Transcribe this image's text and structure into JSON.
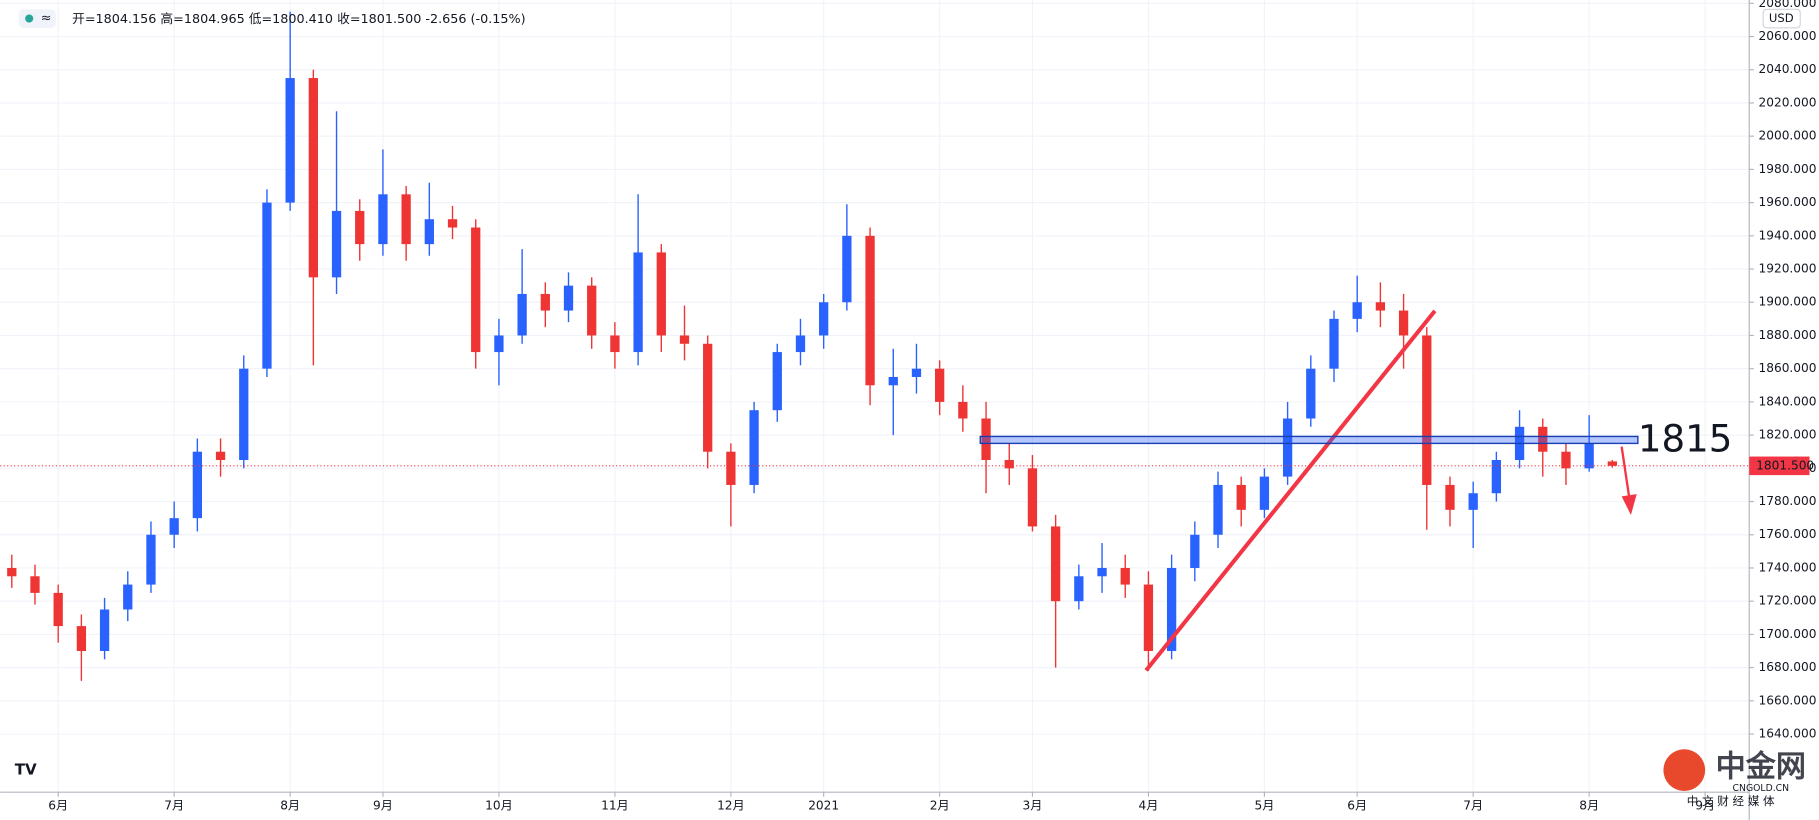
{
  "chart_data": {
    "type": "candlestick",
    "ohlc_header": "开=1804.156 高=1804.965 低=1800.410 收=1801.500 -2.656 (-0.15%)",
    "currency": "USD",
    "annotation": 1815,
    "last_price": {
      "value": 1801.5,
      "label": "1801.500"
    },
    "watermark": "中金网",
    "watermark_sub": "CNGOLD.CN",
    "watermark_tag": "中 文 财 经 媒 体",
    "up_color": "#2962ff",
    "down_color": "#ef3434",
    "xlim": [
      -0.5,
      74.9
    ],
    "xticks": [
      {
        "value": 2,
        "label": "6月"
      },
      {
        "value": 7,
        "label": "7月"
      },
      {
        "value": 12,
        "label": "8月"
      },
      {
        "value": 16,
        "label": "9月"
      },
      {
        "value": 21,
        "label": "10月"
      },
      {
        "value": 26,
        "label": "11月"
      },
      {
        "value": 31,
        "label": "12月"
      },
      {
        "value": 35,
        "label": "2021"
      },
      {
        "value": 40,
        "label": "2月"
      },
      {
        "value": 44,
        "label": "3月"
      },
      {
        "value": 49,
        "label": "4月"
      },
      {
        "value": 54,
        "label": "5月"
      },
      {
        "value": 58,
        "label": "6月"
      },
      {
        "value": 63,
        "label": "7月"
      },
      {
        "value": 68,
        "label": "8月"
      },
      {
        "value": 73,
        "label": "9月"
      }
    ],
    "ylim": [
      1605,
      2082
    ],
    "yticks": [
      {
        "value": 1640,
        "label": "1640.000"
      },
      {
        "value": 1660,
        "label": "1660.000"
      },
      {
        "value": 1680,
        "label": "1680.000"
      },
      {
        "value": 1700,
        "label": "1700.000"
      },
      {
        "value": 1720,
        "label": "1720.000"
      },
      {
        "value": 1740,
        "label": "1740.000"
      },
      {
        "value": 1760,
        "label": "1760.000"
      },
      {
        "value": 1780,
        "label": "1780.000"
      },
      {
        "value": 1800,
        "label": "1800.000"
      },
      {
        "value": 1820,
        "label": "1820.000"
      },
      {
        "value": 1840,
        "label": "1840.000"
      },
      {
        "value": 1860,
        "label": "1860.000"
      },
      {
        "value": 1880,
        "label": "1880.000"
      },
      {
        "value": 1900,
        "label": "1900.000"
      },
      {
        "value": 1920,
        "label": "1920.000"
      },
      {
        "value": 1940,
        "label": "1940.000"
      },
      {
        "value": 1960,
        "label": "1960.000"
      },
      {
        "value": 1980,
        "label": "1980.000"
      },
      {
        "value": 2000,
        "label": "2000.000"
      },
      {
        "value": 2020,
        "label": "2020.000"
      },
      {
        "value": 2040,
        "label": "2040.000"
      },
      {
        "value": 2060,
        "label": "2060.000"
      },
      {
        "value": 2080,
        "label": "2080.000"
      }
    ],
    "grid": true,
    "open": [
      1740,
      1735,
      1725,
      1705,
      1690,
      1715,
      1730,
      1760,
      1770,
      1810,
      1805,
      1860,
      1960,
      2035,
      1915,
      1955,
      1935,
      1965,
      1935,
      1950,
      1945,
      1870,
      1880,
      1905,
      1895,
      1910,
      1880,
      1870,
      1930,
      1880,
      1875,
      1810,
      1790,
      1835,
      1870,
      1880,
      1900,
      1940,
      1850,
      1855,
      1860,
      1840,
      1830,
      1805,
      1800,
      1765,
      1720,
      1735,
      1740,
      1730,
      1690,
      1740,
      1760,
      1790,
      1775,
      1795,
      1830,
      1860,
      1890,
      1900,
      1895,
      1880,
      1790,
      1775,
      1785,
      1805,
      1825,
      1810,
      1800,
      1804.156
    ],
    "high": [
      1748,
      1742,
      1730,
      1712,
      1722,
      1738,
      1768,
      1780,
      1818,
      1818,
      1868,
      1968,
      2075,
      2040,
      2015,
      1962,
      1992,
      1970,
      1972,
      1958,
      1950,
      1890,
      1932,
      1912,
      1918,
      1915,
      1888,
      1965,
      1935,
      1898,
      1880,
      1815,
      1840,
      1875,
      1890,
      1905,
      1959,
      1945,
      1872,
      1875,
      1865,
      1850,
      1840,
      1815,
      1808,
      1772,
      1742,
      1755,
      1748,
      1738,
      1748,
      1768,
      1798,
      1795,
      1800,
      1840,
      1868,
      1895,
      1916,
      1912,
      1905,
      1885,
      1795,
      1792,
      1810,
      1835,
      1830,
      1815,
      1832,
      1804.965
    ],
    "low": [
      1728,
      1718,
      1695,
      1672,
      1685,
      1708,
      1725,
      1752,
      1762,
      1795,
      1800,
      1855,
      1955,
      1862,
      1905,
      1925,
      1928,
      1925,
      1928,
      1938,
      1860,
      1850,
      1875,
      1885,
      1888,
      1872,
      1860,
      1862,
      1870,
      1865,
      1800,
      1765,
      1785,
      1828,
      1862,
      1872,
      1895,
      1838,
      1820,
      1845,
      1832,
      1822,
      1785,
      1790,
      1762,
      1680,
      1715,
      1725,
      1722,
      1678,
      1685,
      1732,
      1752,
      1765,
      1770,
      1790,
      1825,
      1852,
      1882,
      1885,
      1860,
      1763,
      1765,
      1752,
      1780,
      1800,
      1795,
      1790,
      1798,
      1800.41
    ],
    "close": [
      1735,
      1725,
      1705,
      1690,
      1715,
      1730,
      1760,
      1770,
      1810,
      1805,
      1860,
      1960,
      2035,
      1915,
      1955,
      1935,
      1965,
      1935,
      1950,
      1945,
      1870,
      1880,
      1905,
      1895,
      1910,
      1880,
      1870,
      1930,
      1880,
      1875,
      1810,
      1790,
      1835,
      1870,
      1880,
      1900,
      1940,
      1850,
      1855,
      1860,
      1840,
      1830,
      1805,
      1800,
      1765,
      1720,
      1735,
      1740,
      1730,
      1690,
      1740,
      1760,
      1790,
      1775,
      1795,
      1830,
      1860,
      1890,
      1900,
      1895,
      1880,
      1790,
      1775,
      1785,
      1805,
      1825,
      1810,
      1800,
      1815,
      1801.5
    ]
  }
}
